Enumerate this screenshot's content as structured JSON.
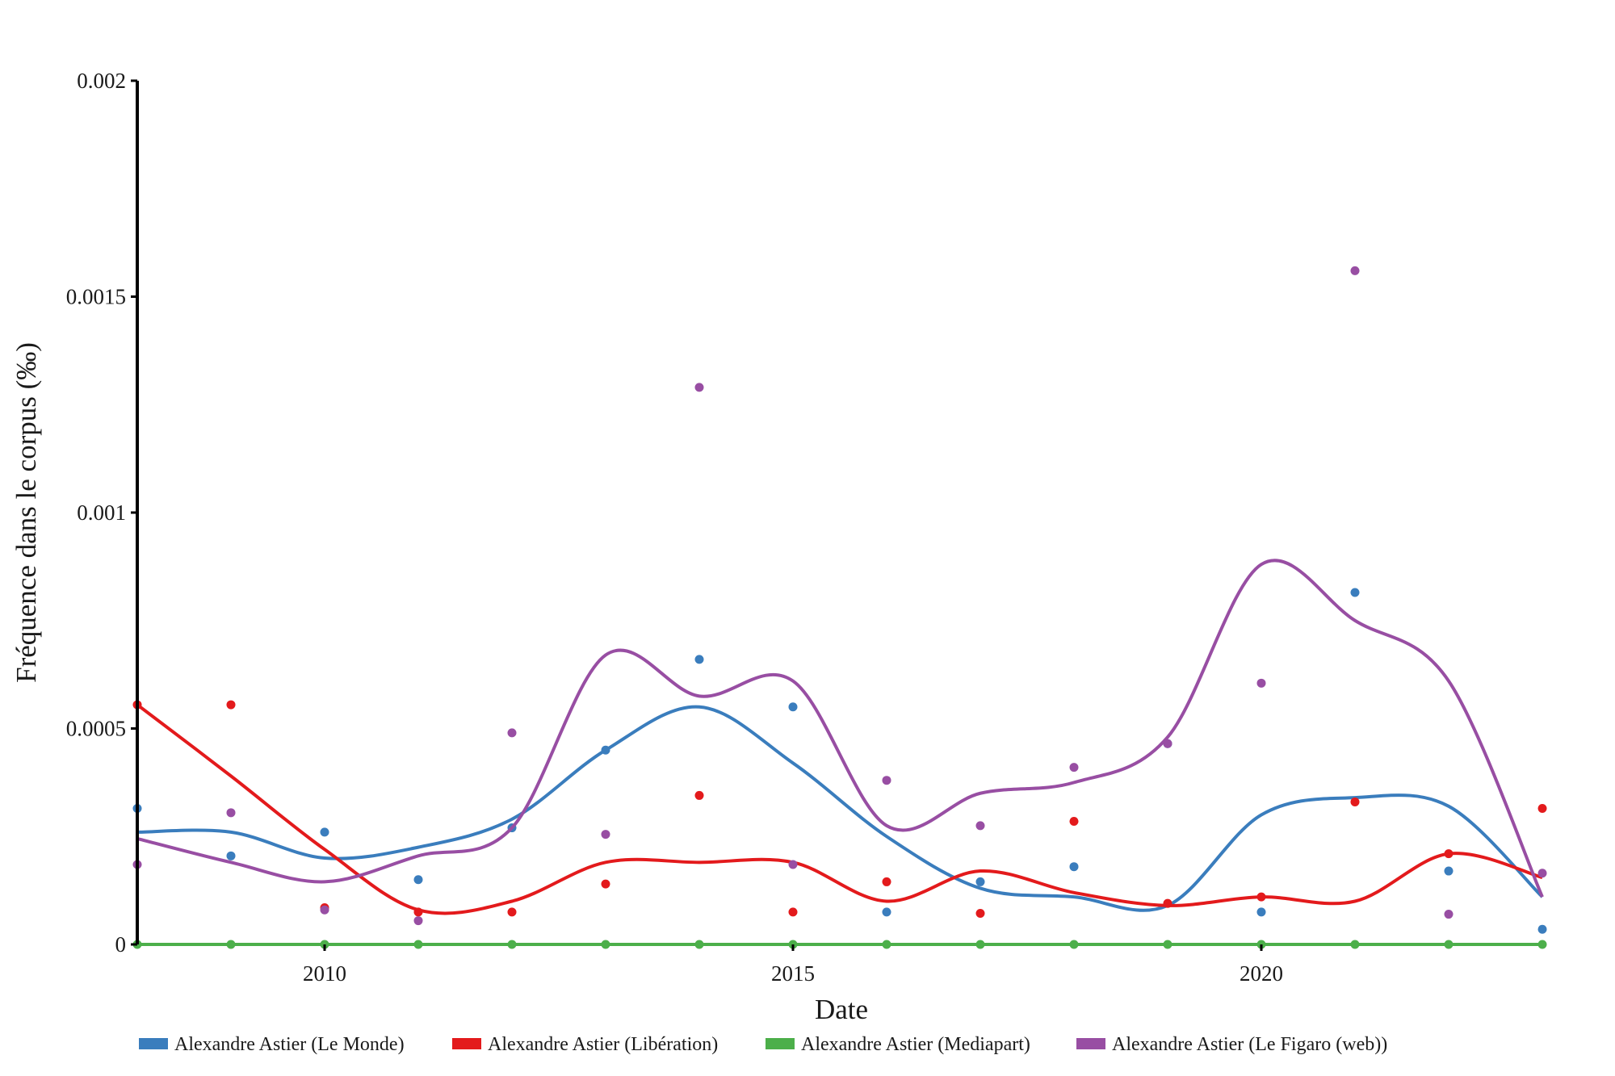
{
  "chart_data": {
    "type": "line",
    "title": "",
    "xlabel": "Date",
    "ylabel": "Fréquence dans le corpus (‰)",
    "xlim": [
      2008,
      2023
    ],
    "ylim": [
      0,
      0.002
    ],
    "x_ticks": [
      2010,
      2015,
      2020
    ],
    "x_tick_labels": [
      "2010",
      "2015",
      "2020"
    ],
    "y_ticks": [
      0,
      0.0005,
      0.001,
      0.0015,
      0.002
    ],
    "y_tick_labels": [
      "0",
      "0.0005",
      "0.001",
      "0.0015",
      "0.002"
    ],
    "grid": false,
    "legend_position": "bottom",
    "x": [
      2008,
      2009,
      2010,
      2011,
      2012,
      2013,
      2014,
      2015,
      2016,
      2017,
      2018,
      2019,
      2020,
      2021,
      2022,
      2023
    ],
    "series": [
      {
        "name": "Alexandre Astier (Le Monde)",
        "color": "#3a7dbd",
        "points": [
          0.000315,
          0.000205,
          0.00026,
          0.00015,
          0.00027,
          0.00045,
          0.00066,
          0.00055,
          7.5e-05,
          0.000145,
          0.00018,
          0.000465,
          7.5e-05,
          0.000815,
          0.00017,
          3.5e-05
        ],
        "smooth": [
          0.00026,
          0.00026,
          0.0002,
          0.000225,
          0.00029,
          0.00045,
          0.00055,
          0.00042,
          0.00025,
          0.00013,
          0.00011,
          9e-05,
          0.0003,
          0.00034,
          0.00032,
          0.00011
        ]
      },
      {
        "name": "Alexandre Astier (Libération)",
        "color": "#e31a1c",
        "points": [
          0.000555,
          0.000555,
          8.5e-05,
          7.5e-05,
          7.5e-05,
          0.00014,
          0.000345,
          7.5e-05,
          0.000145,
          7.2e-05,
          0.000285,
          9.5e-05,
          0.00011,
          0.00033,
          0.00021,
          0.000315
        ],
        "smooth": [
          0.000555,
          0.00039,
          0.00022,
          8e-05,
          0.0001,
          0.00019,
          0.00019,
          0.00019,
          0.0001,
          0.00017,
          0.00012,
          9e-05,
          0.00011,
          0.0001,
          0.00021,
          0.000155
        ]
      },
      {
        "name": "Alexandre Astier (Mediapart)",
        "color": "#4caf4a",
        "points": [
          0,
          0,
          0,
          0,
          0,
          0,
          0,
          0,
          0,
          0,
          0,
          0,
          0,
          0,
          0,
          0
        ],
        "smooth": [
          0,
          0,
          0,
          0,
          0,
          0,
          0,
          0,
          0,
          0,
          0,
          0,
          0,
          0,
          0,
          0
        ]
      },
      {
        "name": "Alexandre Astier (Le Figaro (web))",
        "color": "#984ea3",
        "points": [
          0.000185,
          0.000305,
          8e-05,
          5.5e-05,
          0.00049,
          0.000255,
          0.00129,
          0.000185,
          0.00038,
          0.000275,
          0.00041,
          0.000465,
          0.000605,
          0.00156,
          7e-05,
          0.000165
        ],
        "smooth": [
          0.000245,
          0.00019,
          0.000145,
          0.000205,
          0.00027,
          0.00067,
          0.000575,
          0.00061,
          0.000275,
          0.00035,
          0.000375,
          0.00048,
          0.00088,
          0.00075,
          0.00061,
          0.00011
        ]
      }
    ]
  }
}
